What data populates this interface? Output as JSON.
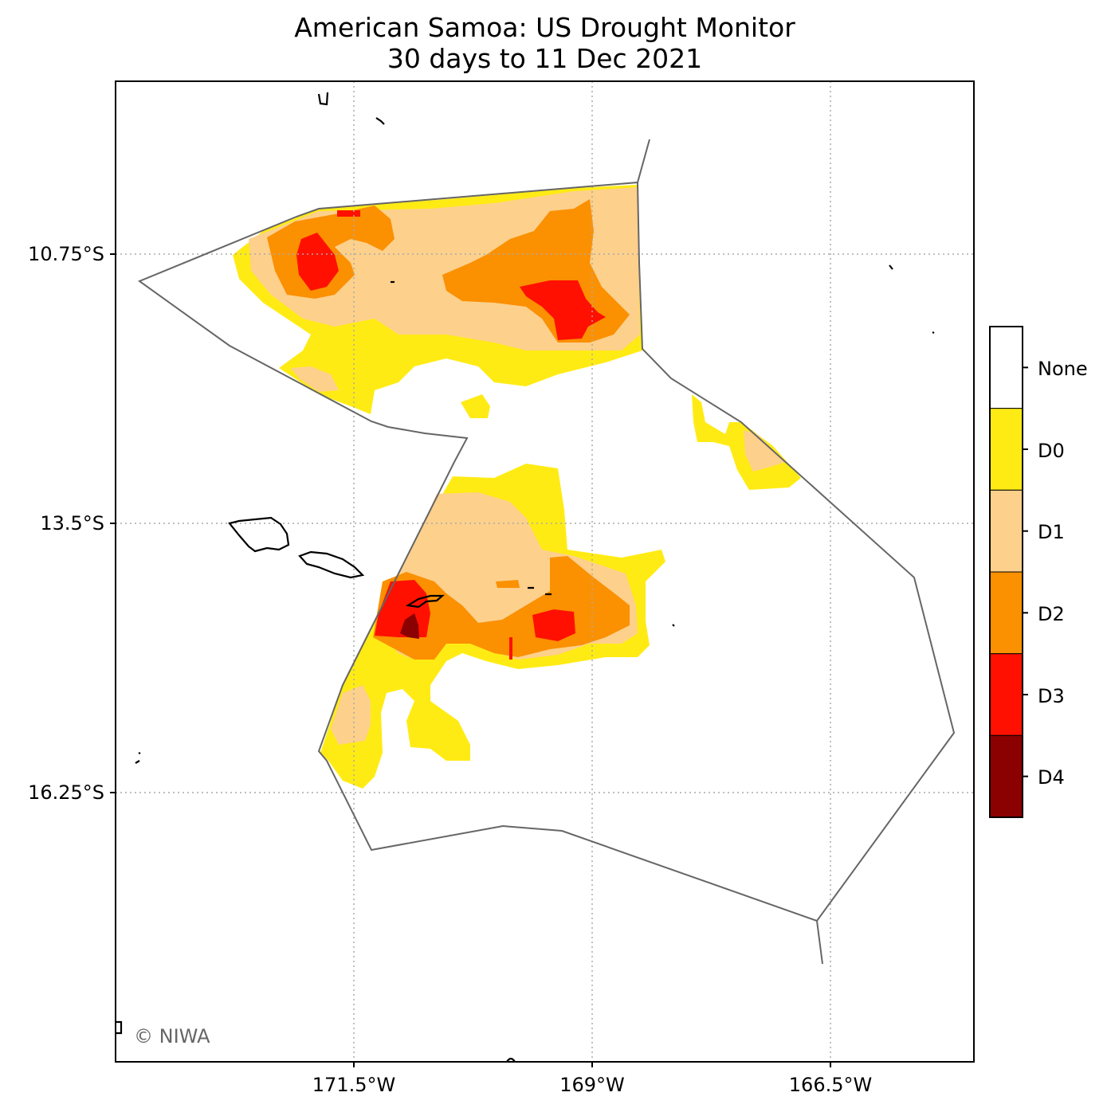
{
  "title_line1": "American Samoa: US Drought Monitor",
  "title_line2": "30 days to 11 Dec 2021",
  "credit": "© NIWA",
  "axes": {
    "y_ticks": [
      "10.75°S",
      "13.5°S",
      "16.25°S"
    ],
    "x_ticks": [
      "171.5°W",
      "169°W",
      "166.5°W"
    ]
  },
  "legend": {
    "categories": [
      {
        "label": "None",
        "color": "#ffffff"
      },
      {
        "label": "D0",
        "color": "#ffeb14"
      },
      {
        "label": "D1",
        "color": "#fdd08c"
      },
      {
        "label": "D2",
        "color": "#fb9000"
      },
      {
        "label": "D3",
        "color": "#ff1000"
      },
      {
        "label": "D4",
        "color": "#8b0000"
      }
    ]
  },
  "colors": {
    "eez_boundary": "#666666",
    "coastline": "#000000",
    "gridline": "#aaaaaa"
  }
}
